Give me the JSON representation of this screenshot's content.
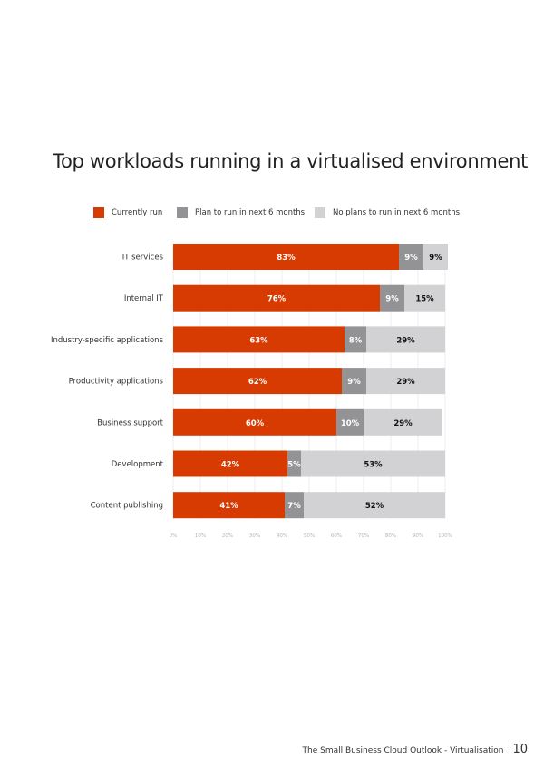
{
  "chart_data": {
    "type": "bar",
    "orientation": "horizontal",
    "stacked": true,
    "title": "Top workloads running in a virtualised environment",
    "categories": [
      "IT services",
      "Internal IT",
      "Industry-specific applications",
      "Productivity applications",
      "Business support",
      "Development",
      "Content publishing"
    ],
    "series": [
      {
        "name": "Currently run",
        "color": "#d83b01",
        "values": [
          83,
          76,
          63,
          62,
          60,
          42,
          41
        ]
      },
      {
        "name": "Plan to run in next 6 months",
        "color": "#939396",
        "values": [
          9,
          9,
          8,
          9,
          10,
          5,
          7
        ]
      },
      {
        "name": "No plans to run in next 6 months",
        "color": "#d2d2d4",
        "values": [
          9,
          15,
          29,
          29,
          29,
          53,
          52
        ]
      }
    ],
    "xlim": [
      0,
      100
    ],
    "xticks": [
      "0%",
      "10%",
      "20%",
      "30%",
      "40%",
      "50%",
      "60%",
      "70%",
      "80%",
      "90%",
      "100%"
    ],
    "grid": true,
    "legend_position": "top"
  },
  "footer": {
    "text": "The Small Business Cloud Outlook - Virtualisation",
    "page": "10"
  }
}
